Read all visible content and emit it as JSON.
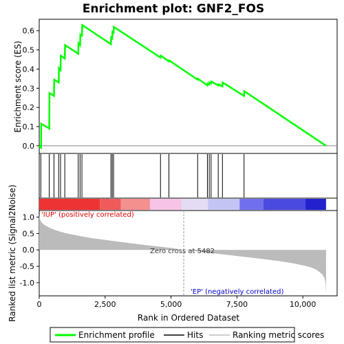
{
  "chart_data": {
    "type": "line",
    "title": "Enrichment plot: GNF2_FOS",
    "xlabel": "Rank in Ordered Dataset",
    "xlim": [
      0,
      11300
    ],
    "x_ticks": [
      0,
      2500,
      5000,
      7500,
      10000
    ],
    "x_tick_labels": [
      "0",
      "2,500",
      "5,000",
      "7,500",
      "10,000"
    ],
    "top_panel": {
      "ylabel": "Enrichment score (ES)",
      "ylim": [
        -0.04,
        0.66
      ],
      "y_ticks": [
        0.0,
        0.1,
        0.2,
        0.3,
        0.4,
        0.5,
        0.6
      ],
      "y_tick_labels": [
        "0.0",
        "0.1",
        "0.2",
        "0.3",
        "0.4",
        "0.5",
        "0.6"
      ],
      "series": [
        {
          "name": "Enrichment profile",
          "color": "#00ff00",
          "x": [
            0,
            70,
            75,
            380,
            390,
            560,
            570,
            740,
            750,
            810,
            820,
            970,
            980,
            1480,
            1490,
            1550,
            1560,
            1620,
            1630,
            2720,
            2730,
            2770,
            2780,
            2820,
            2830,
            4600,
            4610,
            4920,
            4930,
            6010,
            6020,
            6380,
            6390,
            6450,
            6460,
            6520,
            6530,
            6790,
            6800,
            6950,
            6960,
            7770,
            7780,
            10880
          ],
          "y": [
            0.0,
            -0.01,
            0.115,
            0.09,
            0.275,
            0.26,
            0.345,
            0.33,
            0.405,
            0.395,
            0.47,
            0.455,
            0.525,
            0.48,
            0.535,
            0.525,
            0.58,
            0.575,
            0.63,
            0.53,
            0.565,
            0.56,
            0.595,
            0.59,
            0.62,
            0.46,
            0.47,
            0.44,
            0.445,
            0.345,
            0.35,
            0.315,
            0.325,
            0.32,
            0.33,
            0.325,
            0.335,
            0.315,
            0.32,
            0.31,
            0.33,
            0.26,
            0.285,
            0.0
          ]
        }
      ]
    },
    "hits": [
      60,
      380,
      560,
      740,
      810,
      970,
      1480,
      1550,
      1620,
      2720,
      2770,
      2820,
      4600,
      4920,
      6010,
      6380,
      6450,
      6520,
      6790,
      6950,
      7770
    ],
    "color_bar": [
      {
        "x0": 0,
        "x1": 2300,
        "color": "#ee3333"
      },
      {
        "x0": 2300,
        "x1": 3100,
        "color": "#f05a5a"
      },
      {
        "x0": 3100,
        "x1": 4200,
        "color": "#f4908e"
      },
      {
        "x0": 4200,
        "x1": 5400,
        "color": "#f6c4e6"
      },
      {
        "x0": 5400,
        "x1": 6400,
        "color": "#e4dcf4"
      },
      {
        "x0": 6400,
        "x1": 7600,
        "color": "#c4c4f4"
      },
      {
        "x0": 7600,
        "x1": 8500,
        "color": "#7070ee"
      },
      {
        "x0": 8500,
        "x1": 10100,
        "color": "#4a4ae0"
      },
      {
        "x0": 10100,
        "x1": 10880,
        "color": "#2222cc"
      }
    ],
    "bottom_panel": {
      "ylabel": "Ranked list metric (Signal2Noise)",
      "ylim": [
        -1.4,
        1.2
      ],
      "y_ticks": [
        -1.0,
        -0.5,
        0.0,
        0.5,
        1.0
      ],
      "y_tick_labels": [
        "-1.0",
        "-0.5",
        "0.0",
        "0.5",
        "1.0"
      ],
      "metric_x": [
        0,
        30,
        100,
        200,
        400,
        700,
        1000,
        1500,
        2000,
        3000,
        4000,
        5000,
        5482,
        6000,
        7000,
        8000,
        9000,
        9500,
        10000,
        10300,
        10500,
        10650,
        10750,
        10820,
        10860,
        10880
      ],
      "metric_y": [
        1.05,
        0.92,
        0.83,
        0.76,
        0.67,
        0.58,
        0.51,
        0.43,
        0.36,
        0.25,
        0.15,
        0.06,
        0.0,
        -0.05,
        -0.14,
        -0.23,
        -0.33,
        -0.39,
        -0.47,
        -0.53,
        -0.6,
        -0.68,
        -0.76,
        -0.86,
        -1.0,
        -1.32
      ],
      "zero_cross": 5482,
      "zero_cross_text": "Zero cross at 5482",
      "pos_label": "'IUP' (positively correlated)",
      "neg_label": "'EP' (negatively correlated)",
      "pos_color": "#dd0000",
      "neg_color": "#0000cc"
    },
    "legend": {
      "placement": "bottom",
      "entries": [
        {
          "label": "Enrichment profile",
          "color": "#00ff00"
        },
        {
          "label": "Hits",
          "color": "#000000"
        },
        {
          "label": "Ranking metric scores",
          "color": "#bbbbbb"
        }
      ]
    }
  }
}
